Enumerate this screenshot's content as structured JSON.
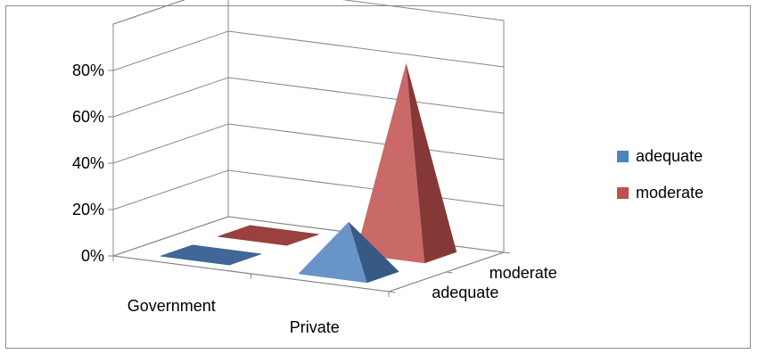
{
  "chart_data": {
    "type": "bar",
    "style": "3d-pyramid",
    "categories": [
      "Government",
      "Private"
    ],
    "series": [
      {
        "name": "adequate",
        "values": [
          0,
          22
        ],
        "color": "#4f81bd"
      },
      {
        "name": "moderate",
        "values": [
          0,
          82
        ],
        "color": "#c0504d"
      }
    ],
    "y_ticks": [
      "0%",
      "20%",
      "40%",
      "60%",
      "80%"
    ],
    "depth_labels": [
      "adequate",
      "moderate"
    ],
    "ylim": [
      0,
      100
    ],
    "grid": true,
    "legend_position": "right"
  }
}
